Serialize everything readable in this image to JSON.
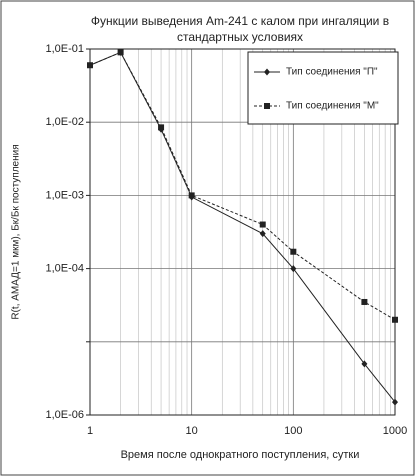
{
  "chart_data": {
    "type": "line",
    "title": [
      "Функции выведения Am-241 с калом при ингаляции в",
      "стандартных условиях"
    ],
    "x_label": "Время после однократного поступления, сутки",
    "y_label": "R(t, АМАД=1 мкм), Бк/Бк поступления",
    "x": [
      1,
      2,
      5,
      10,
      50,
      100,
      500,
      1000
    ],
    "series": [
      {
        "name": "Тип соединения  \"П\"",
        "color": "#222222",
        "marker": "diamond",
        "line_style": "solid",
        "values": [
          0.06,
          0.09,
          0.008,
          0.00095,
          0.0003,
          0.0001,
          5e-06,
          1.5e-06
        ]
      },
      {
        "name": "Тип соединения  \"М\"",
        "color": "#222222",
        "marker": "square",
        "line_style": "dashed",
        "values": [
          0.06,
          0.09,
          0.0085,
          0.001,
          0.0004,
          0.00017,
          3.5e-05,
          2e-05
        ]
      }
    ],
    "xlim": [
      1,
      1000
    ],
    "xticks": [
      1,
      10,
      100,
      1000
    ],
    "ylim": [
      1e-06,
      0.1
    ],
    "yticks": [
      {
        "value": 0.1,
        "label": "1,0E-01"
      },
      {
        "value": 0.01,
        "label": "1,0E-02"
      },
      {
        "value": 0.001,
        "label": "1,0E-03"
      },
      {
        "value": 0.0001,
        "label": "1,0E-04"
      },
      {
        "value": 1e-05,
        "label": null
      },
      {
        "value": 1e-06,
        "label": "1,0E-06"
      }
    ],
    "x_log": true,
    "y_log": true,
    "grid": true,
    "minor_grid": true,
    "legend": "top-right"
  }
}
